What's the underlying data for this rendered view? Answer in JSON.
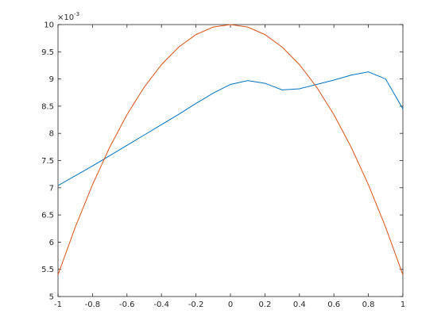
{
  "chart_data": {
    "type": "line",
    "x": [
      -1,
      -0.9,
      -0.8,
      -0.7,
      -0.6,
      -0.5,
      -0.4,
      -0.3,
      -0.2,
      -0.1,
      0,
      0.1,
      0.2,
      0.3,
      0.4,
      0.5,
      0.6,
      0.7,
      0.8,
      0.9,
      1
    ],
    "series": [
      {
        "color": "#0072bd",
        "values": [
          7.04,
          7.22,
          7.4,
          7.59,
          7.78,
          7.97,
          8.16,
          8.35,
          8.55,
          8.74,
          8.9,
          8.97,
          8.92,
          8.8,
          8.82,
          8.9,
          8.98,
          9.07,
          9.13,
          9.0,
          8.45
        ]
      },
      {
        "color": "#d95319",
        "values": [
          5.4,
          6.274,
          7.056,
          7.746,
          8.344,
          8.85,
          9.264,
          9.586,
          9.816,
          9.954,
          10,
          9.954,
          9.816,
          9.586,
          9.264,
          8.85,
          8.344,
          7.746,
          7.056,
          6.274,
          5.4
        ]
      }
    ],
    "xlim": [
      -1,
      1
    ],
    "xticks": [
      -1,
      -0.8,
      -0.6,
      -0.4,
      -0.2,
      0,
      0.2,
      0.4,
      0.6,
      0.8,
      1
    ],
    "ylim": [
      5,
      10
    ],
    "yticks": [
      5,
      5.5,
      6,
      6.5,
      7,
      7.5,
      8,
      8.5,
      9,
      9.5,
      10
    ],
    "y_multiplier": {
      "base": "×10",
      "exponent": "-3"
    }
  }
}
